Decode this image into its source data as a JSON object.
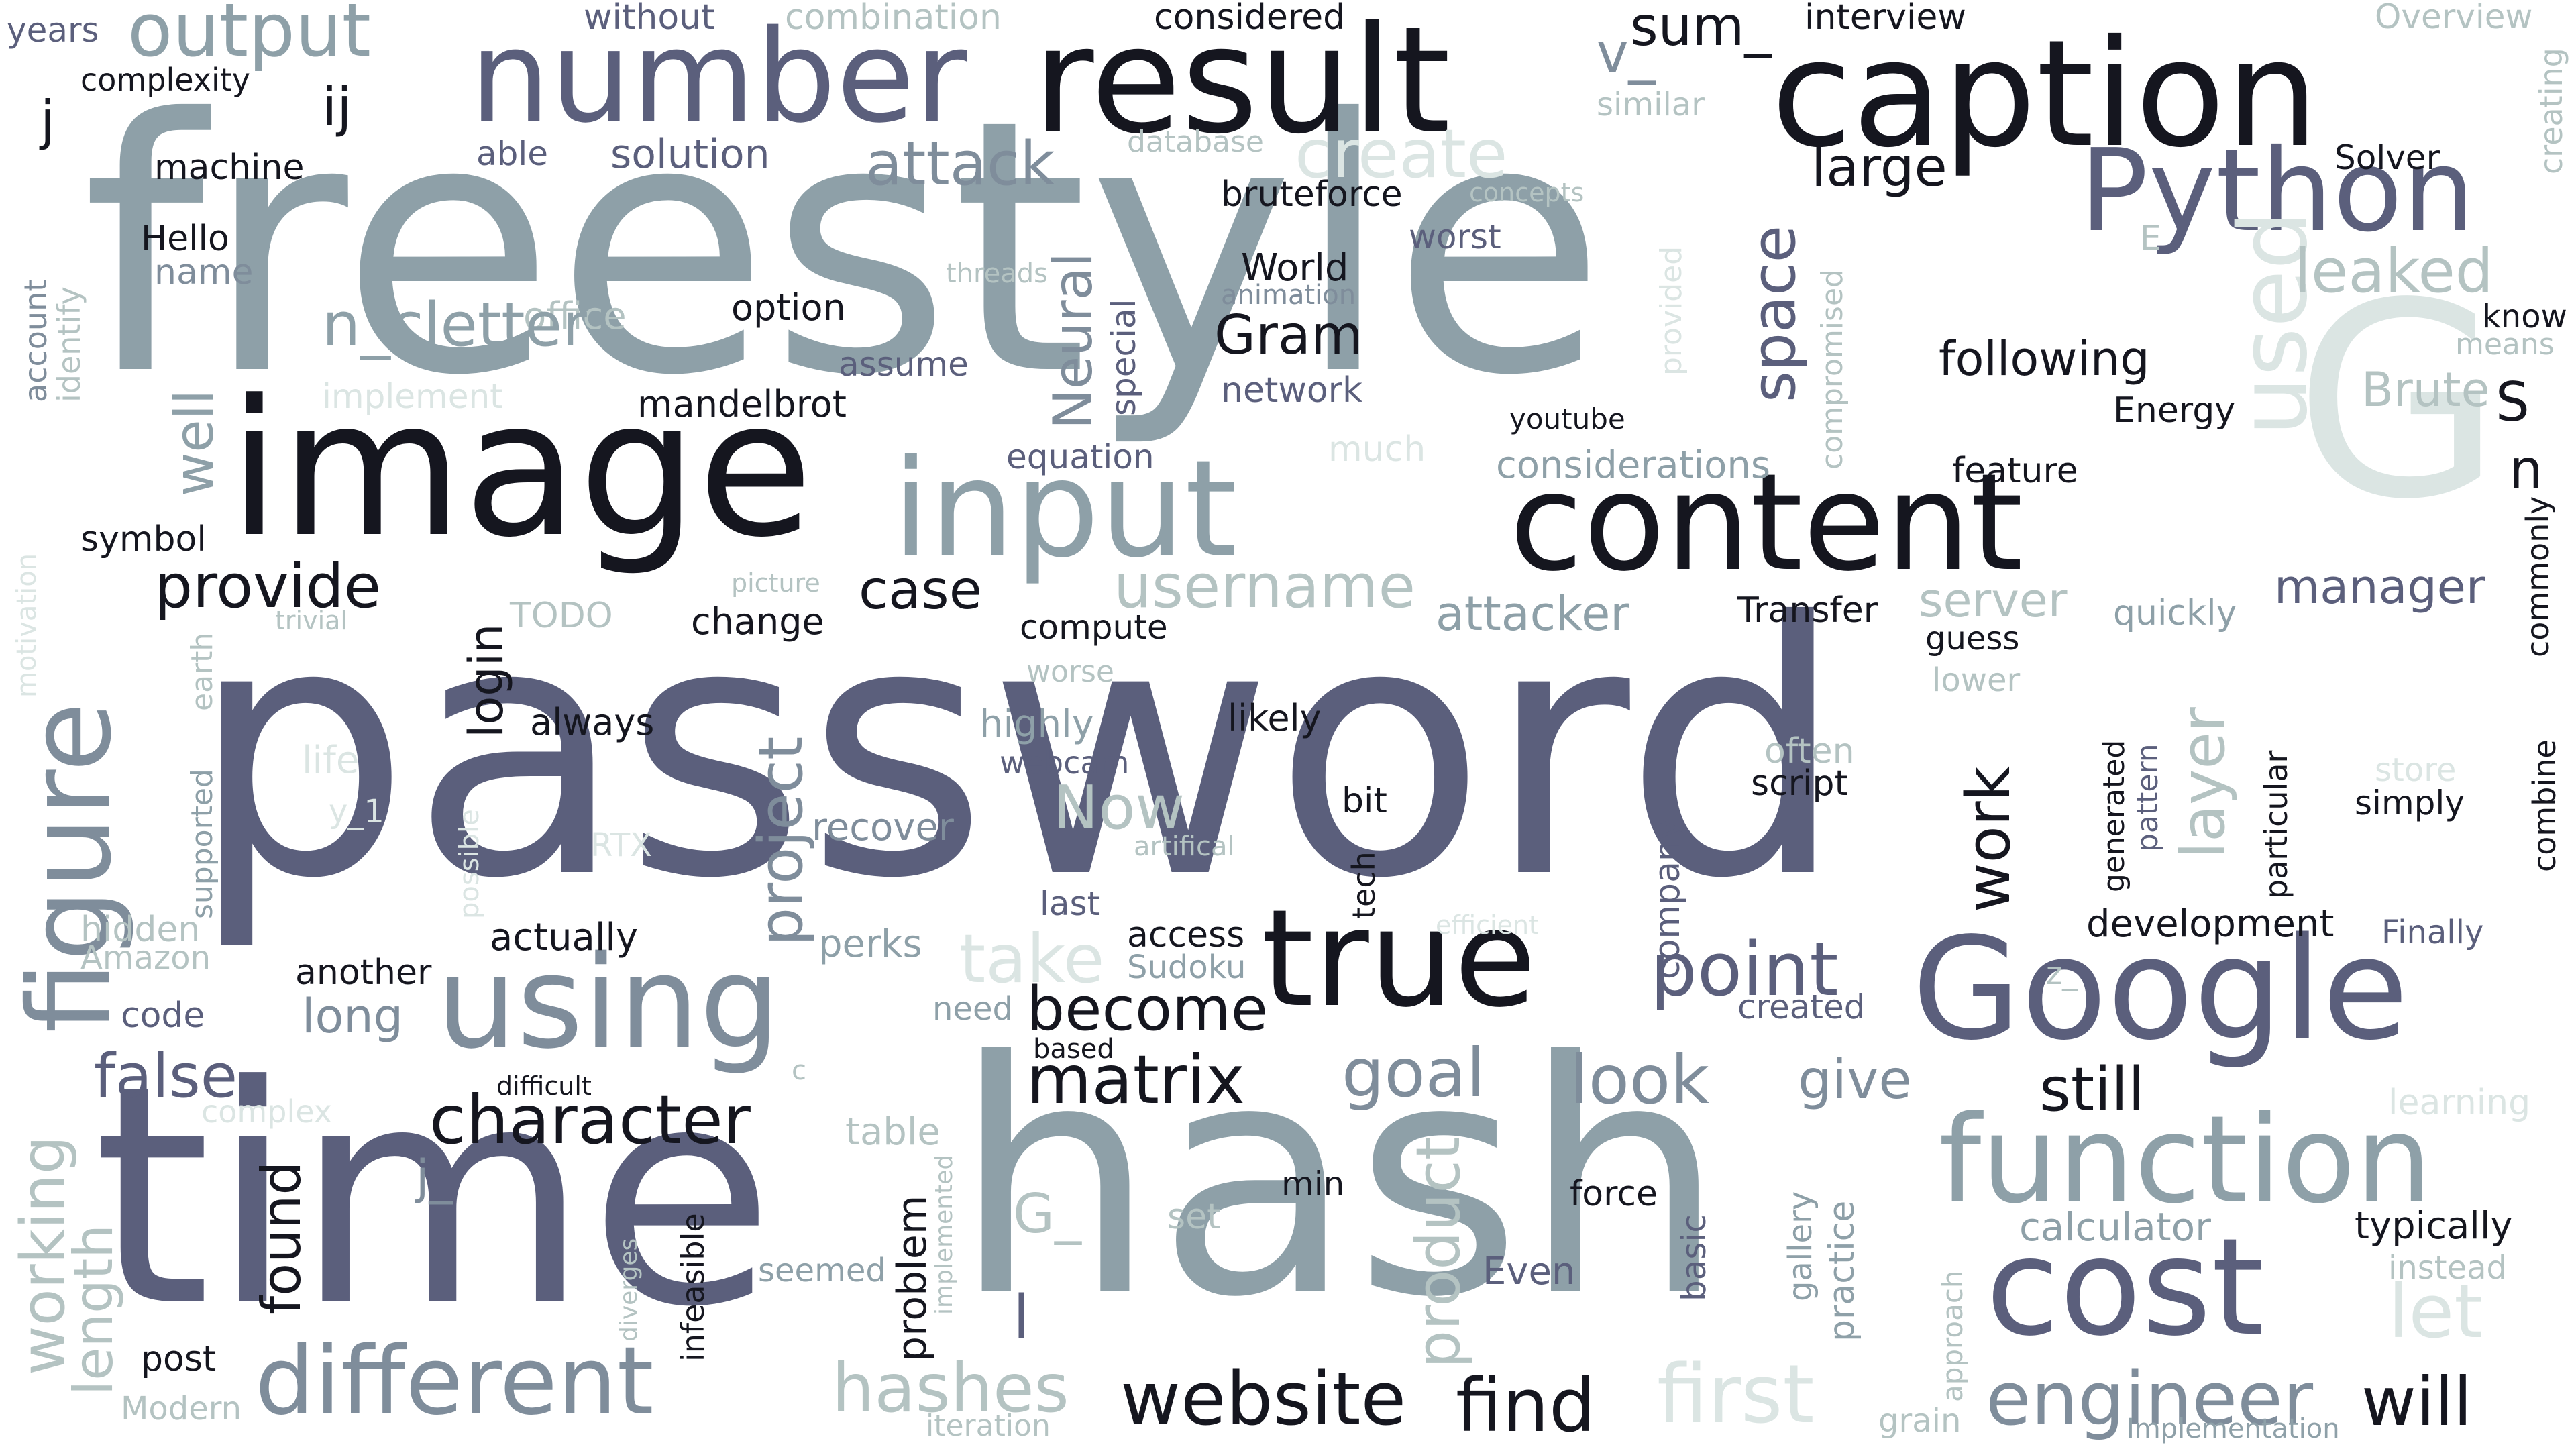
{
  "palette": {
    "dark": "#15161f",
    "slate": "#5b5f7c",
    "steel": "#7f8d9b",
    "grey": "#8ea0a8",
    "pale": "#b4c3c2",
    "faint": "#dbe5e3"
  },
  "words": [
    "password",
    "freestyle",
    "hash",
    "time",
    "caption",
    "result",
    "number",
    "image",
    "input",
    "content",
    "true",
    "Google",
    "using",
    "figure",
    "Python",
    "function",
    "cost",
    "different",
    "output",
    "G",
    "used",
    "website",
    "find",
    "engineer",
    "first",
    "character",
    "matrix",
    "point",
    "hashes",
    "still",
    "look",
    "will",
    "goal",
    "become",
    "give",
    "provide",
    "create",
    "attack",
    "username",
    "leaked",
    "working",
    "length",
    "project",
    "Now",
    "product",
    "layer",
    "work",
    "space",
    "login",
    "Neural",
    "Gram",
    "take",
    "let",
    "following",
    "large",
    "solution",
    "attacker",
    "server",
    "manager",
    "case",
    "false",
    "long",
    "sum_",
    "v_",
    "ij",
    "j",
    "years",
    "complexity",
    "without",
    "combination",
    "considered",
    "interview",
    "Overview",
    "creating",
    "similar",
    "machine",
    "able",
    "database",
    "Solver",
    "Hello",
    "name",
    "bruteforce",
    "concepts",
    "worst",
    "World",
    "animation",
    "E",
    "office",
    "option",
    "n_cletter",
    "well",
    "account",
    "identify",
    "threads",
    "special",
    "network",
    "assume",
    "compromised",
    "provided",
    "know",
    "means",
    "Brute",
    "implement",
    "mandelbrot",
    "much",
    "equation",
    "youtube",
    "Energy",
    "considerations",
    "feature",
    "symbol",
    "picture",
    "trivial",
    "TODO",
    "change",
    "compute",
    "Transfer",
    "guess",
    "quickly",
    "commonly",
    "motivation",
    "always",
    "highly",
    "likely",
    "lower",
    "worse",
    "webcam",
    "often",
    "store",
    "script",
    "simply",
    "combine",
    "life",
    "y_1",
    "RTX",
    "bit",
    "recover",
    "artifical",
    "supported",
    "earth",
    "possible",
    "hidden",
    "Amazon",
    "actually",
    "last",
    "tech",
    "company",
    "efficient",
    "Finally",
    "another",
    "perks",
    "access",
    "Sudoku",
    "z_",
    "development",
    "code",
    "need",
    "created",
    "based",
    "difficult",
    "c",
    "complex",
    "table",
    "learning",
    "generated",
    "pattern",
    "particular",
    "j_",
    "G_",
    "calculator",
    "typically",
    "instead",
    "found",
    "seemed",
    "set",
    "force",
    "Even",
    "min",
    "problem",
    "implemented",
    "infeasible",
    "basic",
    "gallery",
    "practice",
    "approach",
    "diverges",
    "post",
    "Modern",
    "iteration",
    "grain",
    "Implementation",
    "l",
    "n",
    "S"
  ]
}
